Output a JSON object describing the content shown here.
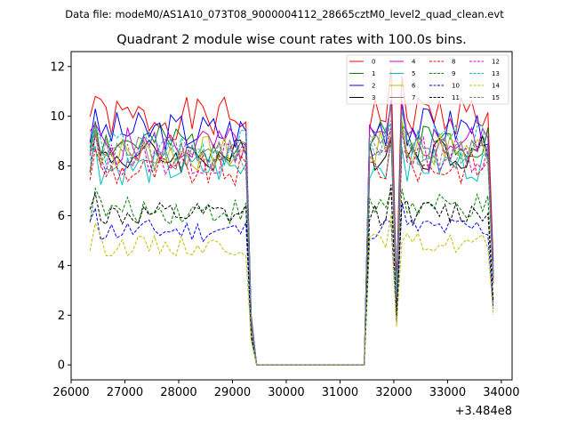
{
  "header": {
    "data_file": "Data file: modeM0/AS1A10_073T08_9000004112_28665cztM0_level2_quad_clean.evt"
  },
  "chart_data": {
    "type": "line",
    "title": "Quadrant 2 module wise count rates with 100.0s bins.",
    "xlabel": "",
    "ylabel": "",
    "x_offset_label": "+3.484e8",
    "xlim": [
      26000,
      34200
    ],
    "ylim": [
      -0.6,
      12.6
    ],
    "x_ticks": [
      26000,
      27000,
      28000,
      29000,
      30000,
      31000,
      32000,
      33000,
      34000
    ],
    "x_tick_labels": [
      "26000",
      "27000",
      "28000",
      "29000",
      "30000",
      "31000",
      "32000",
      "33000",
      "34000"
    ],
    "y_ticks": [
      0,
      2,
      4,
      6,
      8,
      10,
      12
    ],
    "y_tick_labels": [
      "0",
      "2",
      "4",
      "6",
      "8",
      "10",
      "12"
    ],
    "grid": false,
    "legend": {
      "placement": "top-right",
      "columns": 4
    },
    "segments": [
      {
        "start": 26350,
        "end": 29250
      },
      {
        "start": 31450,
        "end": 33850
      }
    ],
    "series": [
      {
        "name": "0",
        "color": "#ff0000",
        "dash": "solid",
        "level": 9.9,
        "seed": 1
      },
      {
        "name": "1",
        "color": "#008000",
        "dash": "solid",
        "level": 8.9,
        "seed": 2
      },
      {
        "name": "2",
        "color": "#0000ff",
        "dash": "solid",
        "level": 9.4,
        "seed": 3
      },
      {
        "name": "3",
        "color": "#000000",
        "dash": "solid",
        "level": 8.4,
        "seed": 4
      },
      {
        "name": "4",
        "color": "#cc00cc",
        "dash": "solid",
        "level": 8.8,
        "seed": 5
      },
      {
        "name": "5",
        "color": "#00bfbf",
        "dash": "solid",
        "level": 7.9,
        "seed": 6
      },
      {
        "name": "6",
        "color": "#bfbf00",
        "dash": "solid",
        "level": 8.5,
        "seed": 7
      },
      {
        "name": "7",
        "color": "#7f7f7f",
        "dash": "solid",
        "level": 8.6,
        "seed": 8
      },
      {
        "name": "8",
        "color": "#ff0000",
        "dash": "dashed",
        "level": 7.8,
        "seed": 9
      },
      {
        "name": "9",
        "color": "#008000",
        "dash": "dashed",
        "level": 6.2,
        "seed": 10
      },
      {
        "name": "10",
        "color": "#0000ff",
        "dash": "dashed",
        "level": 5.4,
        "seed": 11
      },
      {
        "name": "11",
        "color": "#000000",
        "dash": "dashed",
        "level": 6.0,
        "seed": 12
      },
      {
        "name": "12",
        "color": "#cc00cc",
        "dash": "dashed",
        "level": 8.3,
        "seed": 13
      },
      {
        "name": "13",
        "color": "#00bfbf",
        "dash": "dashed",
        "level": 8.7,
        "seed": 14
      },
      {
        "name": "14",
        "color": "#bfbf00",
        "dash": "dashed",
        "level": 4.8,
        "seed": 15
      },
      {
        "name": "15",
        "color": "#7f7f7f",
        "dash": "dashed",
        "level": 8.4,
        "seed": 16
      }
    ]
  }
}
